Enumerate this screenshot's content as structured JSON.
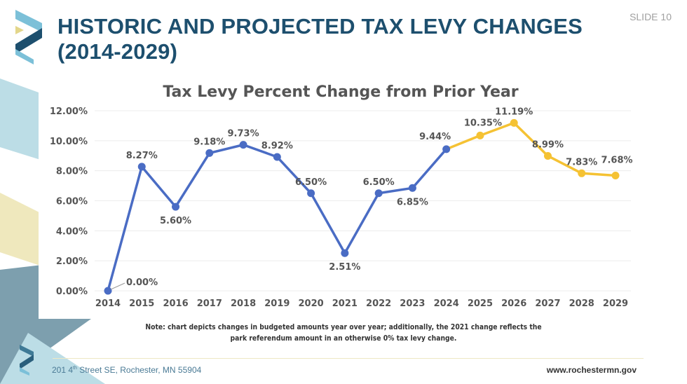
{
  "slide": {
    "title_line1": "HISTORIC AND PROJECTED TAX LEVY CHANGES",
    "title_line2": "(2014-2029)",
    "slide_number": "SLIDE 10",
    "note": "Note: chart depicts changes in budgeted amounts year over year; additionally, the 2021 change reflects the park referendum amount in an otherwise 0% tax levy change.",
    "footer_address_pre": "201 4",
    "footer_address_sup": "th",
    "footer_address_post": " Street SE, Rochester, MN 55904",
    "footer_website": "www.rochestermn.gov"
  },
  "colors": {
    "title": "#1d4f6e",
    "historic_line": "#4a6cc4",
    "projected_line": "#f5c233",
    "light_blue": "#bcdde6",
    "pale_yellow": "#efe8bd",
    "slate": "#7d9fae"
  },
  "chart_data": {
    "type": "line",
    "title": "Tax Levy Percent Change from Prior Year",
    "xlabel": "",
    "ylabel": "",
    "ylim": [
      0,
      12
    ],
    "yticks": [
      "0.00%",
      "2.00%",
      "4.00%",
      "6.00%",
      "8.00%",
      "10.00%",
      "12.00%"
    ],
    "grid": true,
    "categories": [
      "2014",
      "2015",
      "2016",
      "2017",
      "2018",
      "2019",
      "2020",
      "2021",
      "2022",
      "2023",
      "2024",
      "2025",
      "2026",
      "2027",
      "2028",
      "2029"
    ],
    "values": [
      0.0,
      8.27,
      5.6,
      9.18,
      9.73,
      8.92,
      6.5,
      2.51,
      6.5,
      6.85,
      9.44,
      10.35,
      11.19,
      8.99,
      7.83,
      7.68
    ],
    "labels": [
      "0.00%",
      "8.27%",
      "5.60%",
      "9.18%",
      "9.73%",
      "8.92%",
      "6.50%",
      "2.51%",
      "6.50%",
      "6.85%",
      "9.44%",
      "10.35%",
      "11.19%",
      "8.99%",
      "7.83%",
      "7.68%"
    ],
    "series": [
      {
        "segment": "historic",
        "from": "2014",
        "to": "2024",
        "color": "#4a6cc4"
      },
      {
        "segment": "projected",
        "from": "2024",
        "to": "2029",
        "color": "#f5c233"
      }
    ]
  }
}
